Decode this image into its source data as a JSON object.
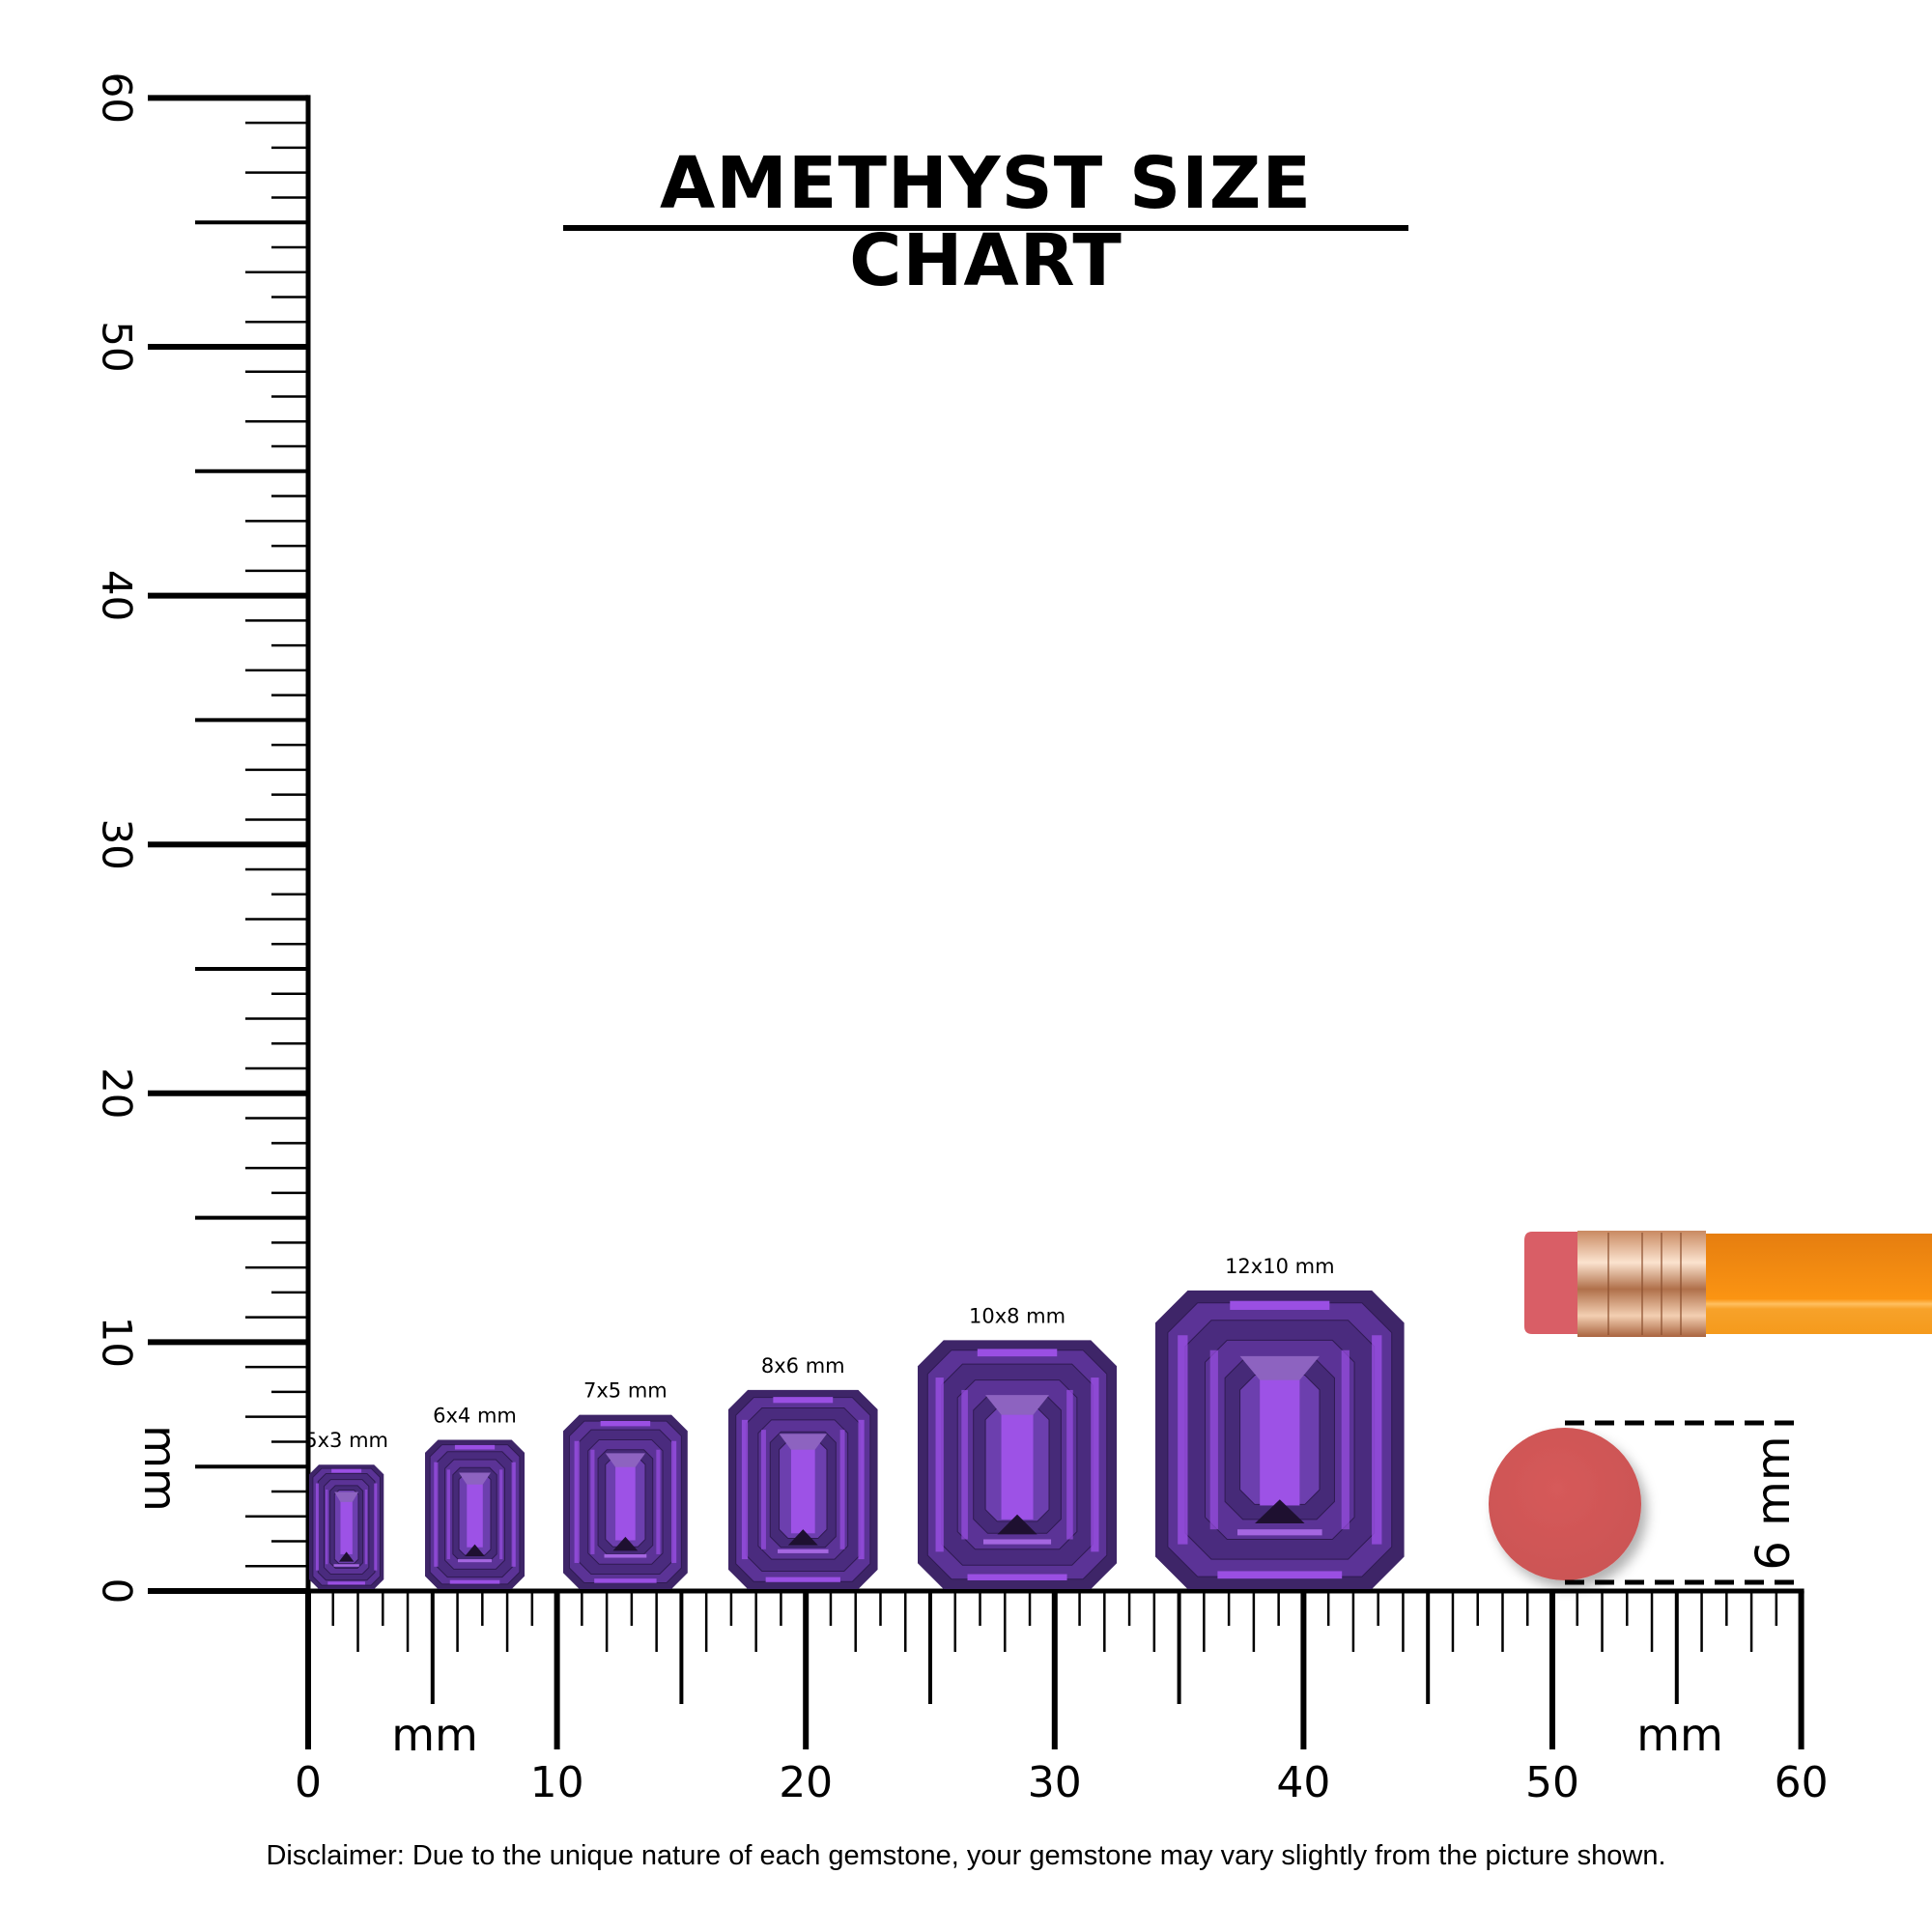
{
  "title": "AMETHYST SIZE CHART",
  "disclaimer": "Disclaimer: Due to the unique nature of each gemstone, your gemstone may vary slightly from the picture shown.",
  "vertical_ruler": {
    "unit_label": "mm",
    "tick_labels": [
      "0",
      "10",
      "20",
      "30",
      "40",
      "50",
      "60"
    ]
  },
  "horizontal_ruler": {
    "unit_labels": [
      "mm",
      "mm"
    ],
    "tick_labels": [
      "0",
      "10",
      "20",
      "30",
      "40",
      "50",
      "60"
    ]
  },
  "gems": [
    {
      "label": "5x3 mm",
      "length_mm": 5,
      "width_mm": 3
    },
    {
      "label": "6x4 mm",
      "length_mm": 6,
      "width_mm": 4
    },
    {
      "label": "7x5 mm",
      "length_mm": 7,
      "width_mm": 5
    },
    {
      "label": "8x6 mm",
      "length_mm": 8,
      "width_mm": 6
    },
    {
      "label": "10x8 mm",
      "length_mm": 10,
      "width_mm": 8
    },
    {
      "label": "12x10 mm",
      "length_mm": 12,
      "width_mm": 10
    }
  ],
  "reference": {
    "eraser_label": "6 mm"
  },
  "colors": {
    "gem_dark": "#3e2568",
    "gem_mid": "#5b3396",
    "gem_bright": "#9a4fe3",
    "pencil_body": "#f7921c",
    "eraser": "#d45a5a",
    "ferrule": "#d9a27a"
  }
}
